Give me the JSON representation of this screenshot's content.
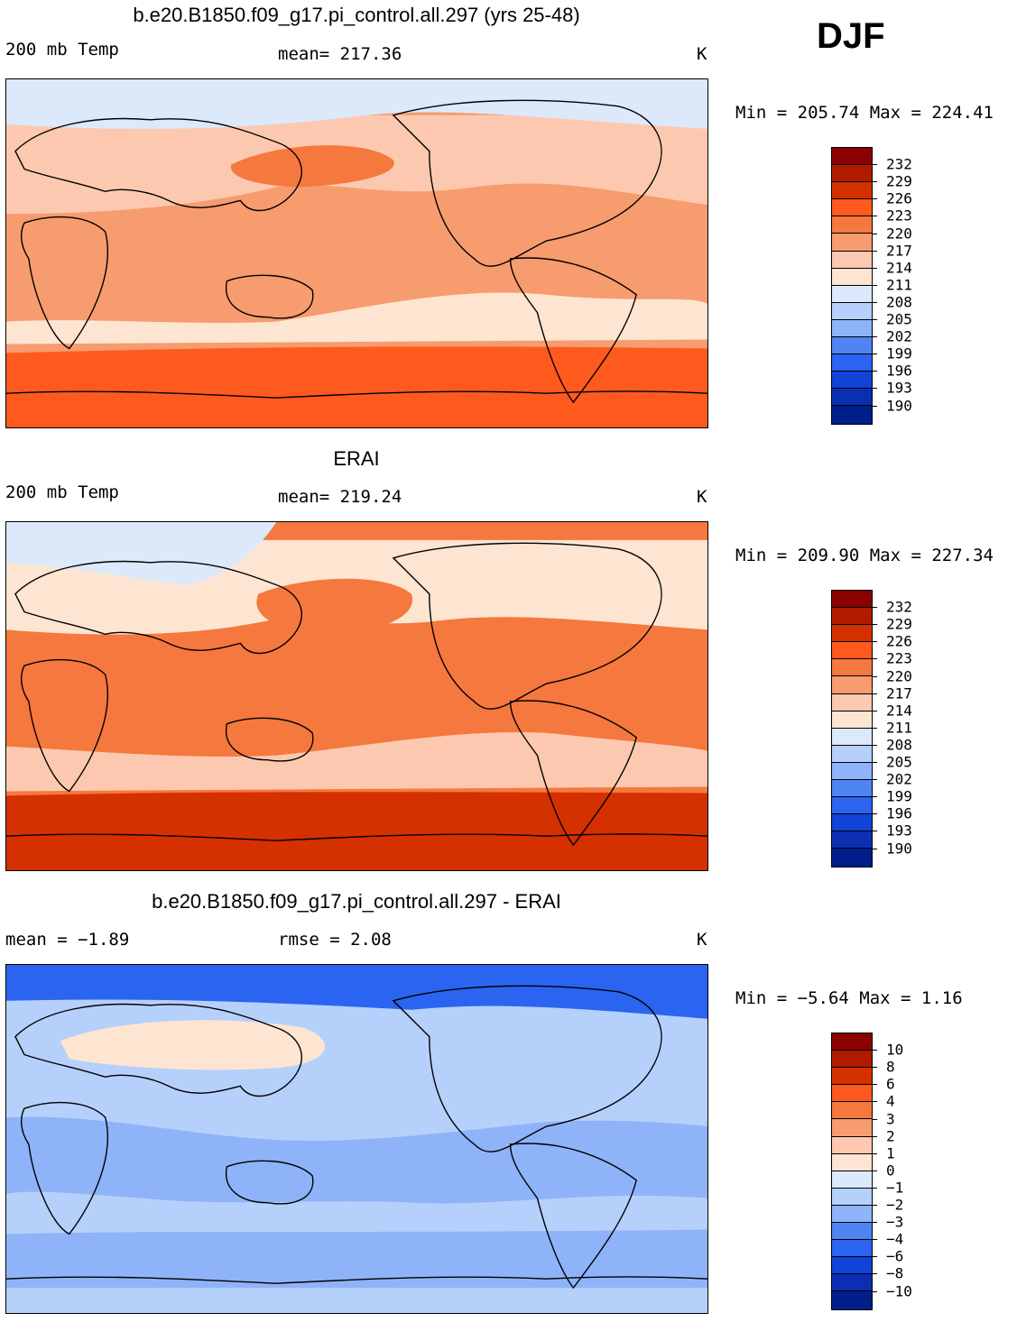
{
  "season": "DJF",
  "panels": [
    {
      "title": "b.e20.B1850.f09_g17.pi_control.all.297 (yrs 25-48)",
      "left_label": "200 mb Temp",
      "center_label": "mean= 217.36",
      "units": "K",
      "minmax": "Min = 205.74 Max = 224.41",
      "colorbar": {
        "labels": [
          "232",
          "229",
          "226",
          "223",
          "220",
          "217",
          "214",
          "211",
          "208",
          "205",
          "202",
          "199",
          "196",
          "193",
          "190"
        ],
        "colors": [
          "#8b0000",
          "#b21a00",
          "#d43000",
          "#ff5a1e",
          "#f5783e",
          "#f79c6e",
          "#fcc9b0",
          "#fde5d2",
          "#dbe9fb",
          "#b5d0fb",
          "#8fb3f8",
          "#4f84f3",
          "#2a64f0",
          "#1043d6",
          "#0a2fb3",
          "#001e8a"
        ]
      },
      "regions": [
        {
          "name": "northern-band",
          "color": "#fcc9b0"
        },
        {
          "name": "arctic-band",
          "color": "#dbe9fb"
        },
        {
          "name": "tropics",
          "color": "#f79c6e"
        },
        {
          "name": "north-pacific-max",
          "color": "#f5783e"
        },
        {
          "name": "south-pacific-min",
          "color": "#fde5d2"
        },
        {
          "name": "southern-ocean-max",
          "color": "#ff5a1e"
        }
      ]
    },
    {
      "title": "ERAI",
      "left_label": "200 mb Temp",
      "center_label": "mean= 219.24",
      "units": "K",
      "minmax": "Min = 209.90 Max = 227.34",
      "colorbar": {
        "labels": [
          "232",
          "229",
          "226",
          "223",
          "220",
          "217",
          "214",
          "211",
          "208",
          "205",
          "202",
          "199",
          "196",
          "193",
          "190"
        ],
        "colors": [
          "#8b0000",
          "#b21a00",
          "#d43000",
          "#ff5a1e",
          "#f5783e",
          "#f79c6e",
          "#fcc9b0",
          "#fde5d2",
          "#dbe9fb",
          "#b5d0fb",
          "#8fb3f8",
          "#4f84f3",
          "#2a64f0",
          "#1043d6",
          "#0a2fb3",
          "#001e8a"
        ]
      },
      "regions": [
        {
          "name": "northern-band",
          "color": "#fde5d2"
        },
        {
          "name": "arctic-band",
          "color": "#dbe9fb"
        },
        {
          "name": "tropics",
          "color": "#f5783e"
        },
        {
          "name": "north-pacific-max",
          "color": "#f5783e"
        },
        {
          "name": "south-pacific-min",
          "color": "#fcc9b0"
        },
        {
          "name": "southern-ocean-max",
          "color": "#d43000"
        }
      ]
    },
    {
      "title": "b.e20.B1850.f09_g17.pi_control.all.297 - ERAI",
      "left_label": "mean =   −1.89",
      "center_label": "rmse =    2.08",
      "units": "K",
      "minmax": "Min =   −5.64 Max =    1.16",
      "colorbar": {
        "labels": [
          "10",
          "8",
          "6",
          "4",
          "3",
          "2",
          "1",
          "0",
          "−1",
          "−2",
          "−3",
          "−4",
          "−6",
          "−8",
          "−10"
        ],
        "colors": [
          "#8b0000",
          "#b21a00",
          "#d43000",
          "#ff5a1e",
          "#f5783e",
          "#f79c6e",
          "#fcc9b0",
          "#fde5d2",
          "#dbe9fb",
          "#b5d0fb",
          "#8fb3f8",
          "#4f84f3",
          "#2a64f0",
          "#1043d6",
          "#0a2fb3",
          "#001e8a"
        ]
      },
      "regions": [
        {
          "name": "background",
          "color": "#b5d0fb"
        },
        {
          "name": "arctic-band",
          "color": "#2a64f0"
        },
        {
          "name": "eurasia-warm",
          "color": "#fde5d2"
        },
        {
          "name": "tropics",
          "color": "#8fb3f8"
        },
        {
          "name": "southern-band",
          "color": "#8fb3f8"
        }
      ]
    }
  ]
}
